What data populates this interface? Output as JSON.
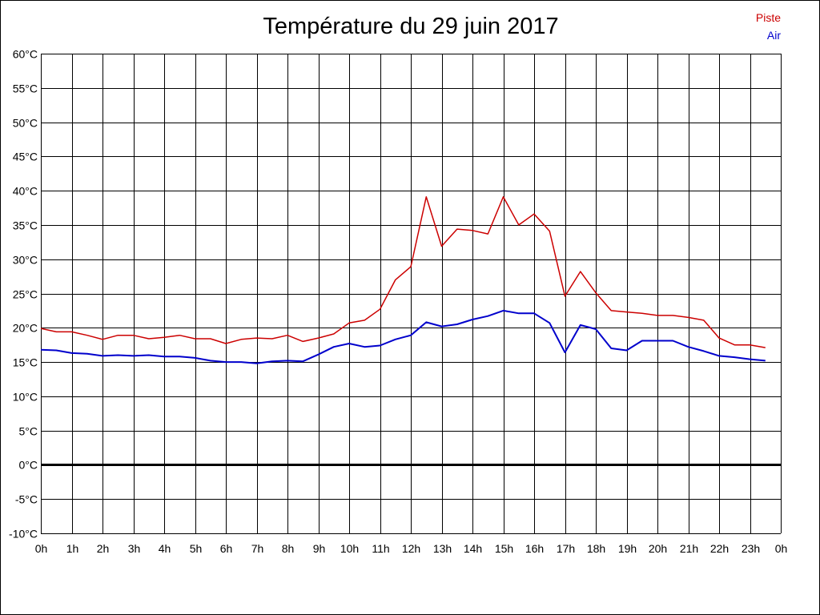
{
  "colors": {
    "piste": "#cc0000",
    "air": "#0000cc",
    "grid": "#000000",
    "zero_line": "#000000"
  },
  "chart_data": {
    "type": "line",
    "title": "Température du 29 juin 2017",
    "xlabel": "",
    "ylabel": "",
    "ylim": [
      -10,
      60
    ],
    "xlim": [
      0,
      24
    ],
    "grid": true,
    "legend_placement": "top-right",
    "y_ticks": [
      -10,
      -5,
      0,
      5,
      10,
      15,
      20,
      25,
      30,
      35,
      40,
      45,
      50,
      55,
      60
    ],
    "y_tick_labels": [
      "-10°C",
      "-5°C",
      "0°C",
      "5°C",
      "10°C",
      "15°C",
      "20°C",
      "25°C",
      "30°C",
      "35°C",
      "40°C",
      "45°C",
      "50°C",
      "55°C",
      "60°C"
    ],
    "x_ticks": [
      0,
      1,
      2,
      3,
      4,
      5,
      6,
      7,
      8,
      9,
      10,
      11,
      12,
      13,
      14,
      15,
      16,
      17,
      18,
      19,
      20,
      21,
      22,
      23,
      24
    ],
    "x_tick_labels": [
      "0h",
      "1h",
      "2h",
      "3h",
      "4h",
      "5h",
      "6h",
      "7h",
      "8h",
      "9h",
      "10h",
      "11h",
      "12h",
      "13h",
      "14h",
      "15h",
      "16h",
      "17h",
      "18h",
      "19h",
      "20h",
      "21h",
      "22h",
      "23h",
      "0h"
    ],
    "x": [
      0,
      0.5,
      1,
      1.5,
      2,
      2.5,
      3,
      3.5,
      4,
      4.5,
      5,
      5.5,
      6,
      6.5,
      7,
      7.5,
      8,
      8.5,
      9,
      9.5,
      10,
      10.5,
      11,
      11.5,
      12,
      12.5,
      13,
      13.5,
      14,
      14.5,
      15,
      15.5,
      16,
      16.5,
      17,
      17.5,
      18,
      18.5,
      19,
      19.5,
      20,
      20.5,
      21,
      21.5,
      22,
      22.5,
      23,
      23.5
    ],
    "series": [
      {
        "name": "Piste",
        "color": "#cc0000",
        "values": [
          19.9,
          19.4,
          19.4,
          18.9,
          18.3,
          18.9,
          18.9,
          18.4,
          18.6,
          18.9,
          18.4,
          18.4,
          17.7,
          18.3,
          18.5,
          18.4,
          18.9,
          18.0,
          18.5,
          19.1,
          20.7,
          21.1,
          22.7,
          27.0,
          28.9,
          39.1,
          31.9,
          34.4,
          34.2,
          33.7,
          39.1,
          35.0,
          36.6,
          34.1,
          24.6,
          28.2,
          25.1,
          22.5,
          22.3,
          22.1,
          21.8,
          21.8,
          21.5,
          21.1,
          18.5,
          17.5,
          17.5,
          17.1
        ]
      },
      {
        "name": "Air",
        "color": "#0000cc",
        "values": [
          16.8,
          16.7,
          16.3,
          16.2,
          15.9,
          16.0,
          15.9,
          16.0,
          15.8,
          15.8,
          15.6,
          15.2,
          15.0,
          15.0,
          14.8,
          15.1,
          15.2,
          15.1,
          16.1,
          17.2,
          17.7,
          17.2,
          17.4,
          18.3,
          18.9,
          20.8,
          20.2,
          20.5,
          21.2,
          21.7,
          22.5,
          22.1,
          22.1,
          20.7,
          16.4,
          20.4,
          19.8,
          17.0,
          16.7,
          18.1,
          18.1,
          18.1,
          17.2,
          16.6,
          15.9,
          15.7,
          15.4,
          15.2
        ]
      }
    ]
  }
}
